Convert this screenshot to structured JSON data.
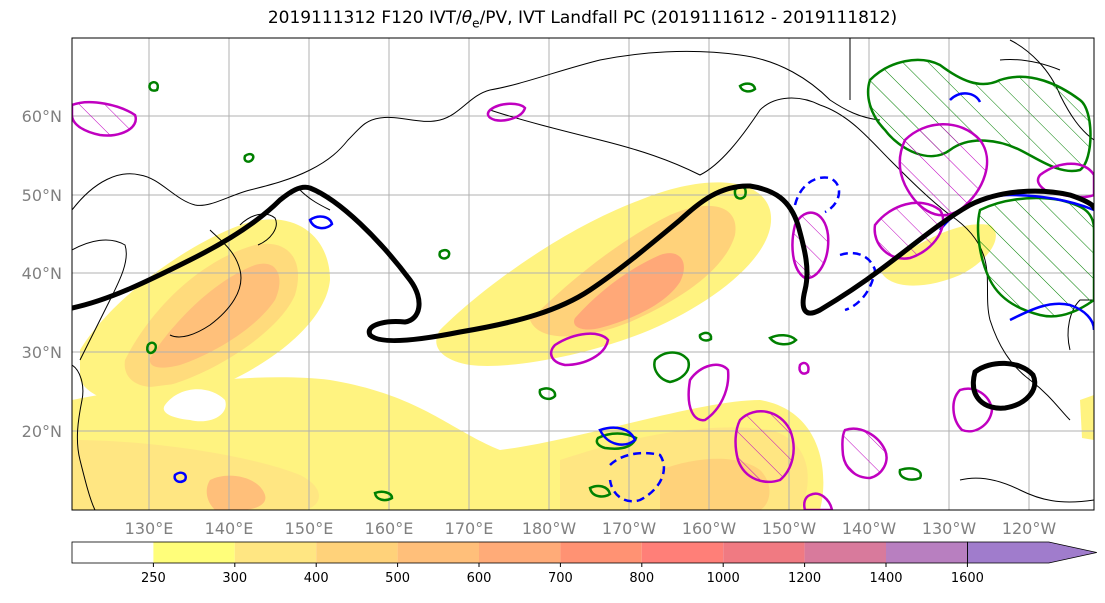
{
  "title": {
    "prefix": "2019111312 F120 IVT/",
    "theta_symbol": "θ",
    "theta_sub": "e",
    "suffix": "/PV, IVT Landfall PC (2019111612 - 2019111812)"
  },
  "map": {
    "lat_labels": [
      "60°N",
      "50°N",
      "40°N",
      "30°N",
      "20°N"
    ],
    "lon_labels": [
      "130°E",
      "140°E",
      "150°E",
      "160°E",
      "170°E",
      "180°W",
      "170°W",
      "160°W",
      "150°W",
      "140°W",
      "130°W",
      "120°W"
    ],
    "colors": {
      "pv_contour": "#000000",
      "theta_e_pos": "#008000",
      "theta_e_neg": "#0000ff",
      "ivt_pc": "#c000c0"
    }
  },
  "colorbar": {
    "levels": [
      "250",
      "300",
      "400",
      "500",
      "600",
      "700",
      "800",
      "1000",
      "1200",
      "1400",
      "1600"
    ],
    "colors": [
      "#ffffff",
      "#fffe7a",
      "#ffe682",
      "#ffd27a",
      "#ffbf7a",
      "#ffab78",
      "#ff9273",
      "#ff7f78",
      "#f07a82",
      "#d87a9c",
      "#b87fc0",
      "#a07ccc"
    ]
  }
}
